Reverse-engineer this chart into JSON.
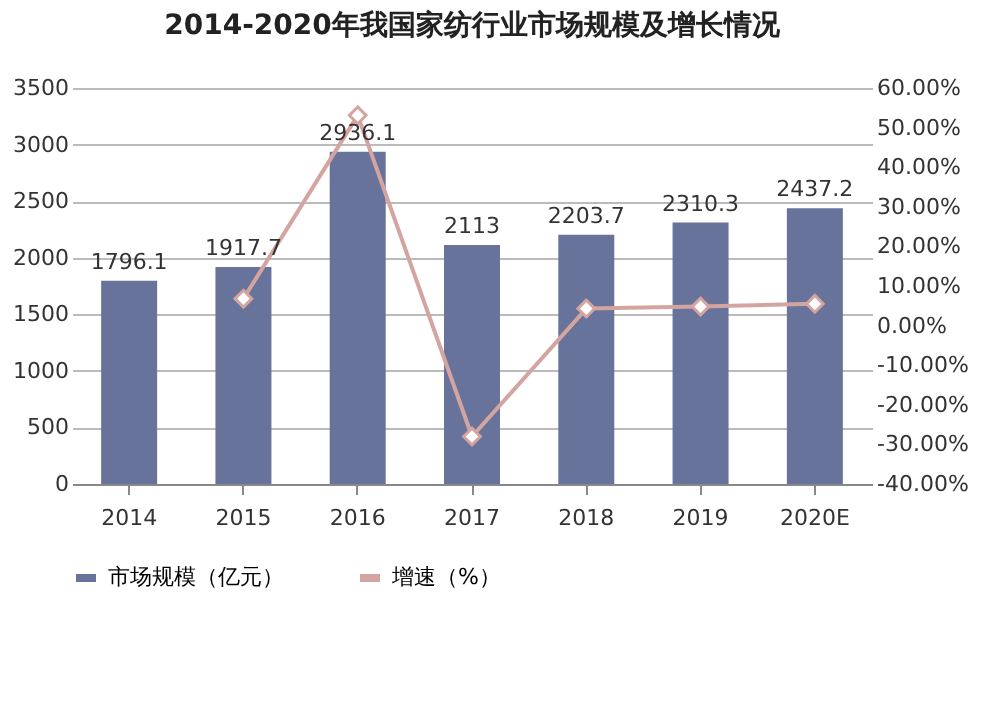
{
  "chart_data": {
    "type": "bar",
    "title": "2014-2020年我国家纺行业市场规模及增长情况",
    "categories": [
      "2014",
      "2015",
      "2016",
      "2017",
      "2018",
      "2019",
      "2020E"
    ],
    "series": [
      {
        "name": "市场规模（亿元）",
        "color": "#67739a",
        "values": [
          1796.1,
          1917.7,
          2936.1,
          2113,
          2203.7,
          2310.3,
          2437.2
        ],
        "value_labels": [
          "1796.1",
          "1917.7",
          "2936.1",
          "2113",
          "2203.7",
          "2310.3",
          "2437.2"
        ]
      },
      {
        "name": "增速（%）",
        "type": "line",
        "axis": "y2",
        "color": "#d4a5a0",
        "marker": "diamond",
        "values": [
          null,
          6.8,
          53.1,
          -28.0,
          4.3,
          4.8,
          5.5
        ]
      }
    ],
    "ylim": [
      0,
      3500
    ],
    "yticks": [
      0,
      500,
      1000,
      1500,
      2000,
      2500,
      3000,
      3500
    ],
    "y2lim": [
      -40,
      60
    ],
    "y2ticks": [
      {
        "value": -40,
        "label": "-40.00%"
      },
      {
        "value": -30,
        "label": "-30.00%"
      },
      {
        "value": -20,
        "label": "-20.00%"
      },
      {
        "value": -10,
        "label": "-10.00%"
      },
      {
        "value": 0,
        "label": "0.00%"
      },
      {
        "value": 10,
        "label": "10.00%"
      },
      {
        "value": 20,
        "label": "20.00%"
      },
      {
        "value": 30,
        "label": "30.00%"
      },
      {
        "value": 40,
        "label": "40.00%"
      },
      {
        "value": 50,
        "label": "50.00%"
      },
      {
        "value": 60,
        "label": "60.00%"
      }
    ],
    "grid": "y",
    "legend": "bottom"
  }
}
